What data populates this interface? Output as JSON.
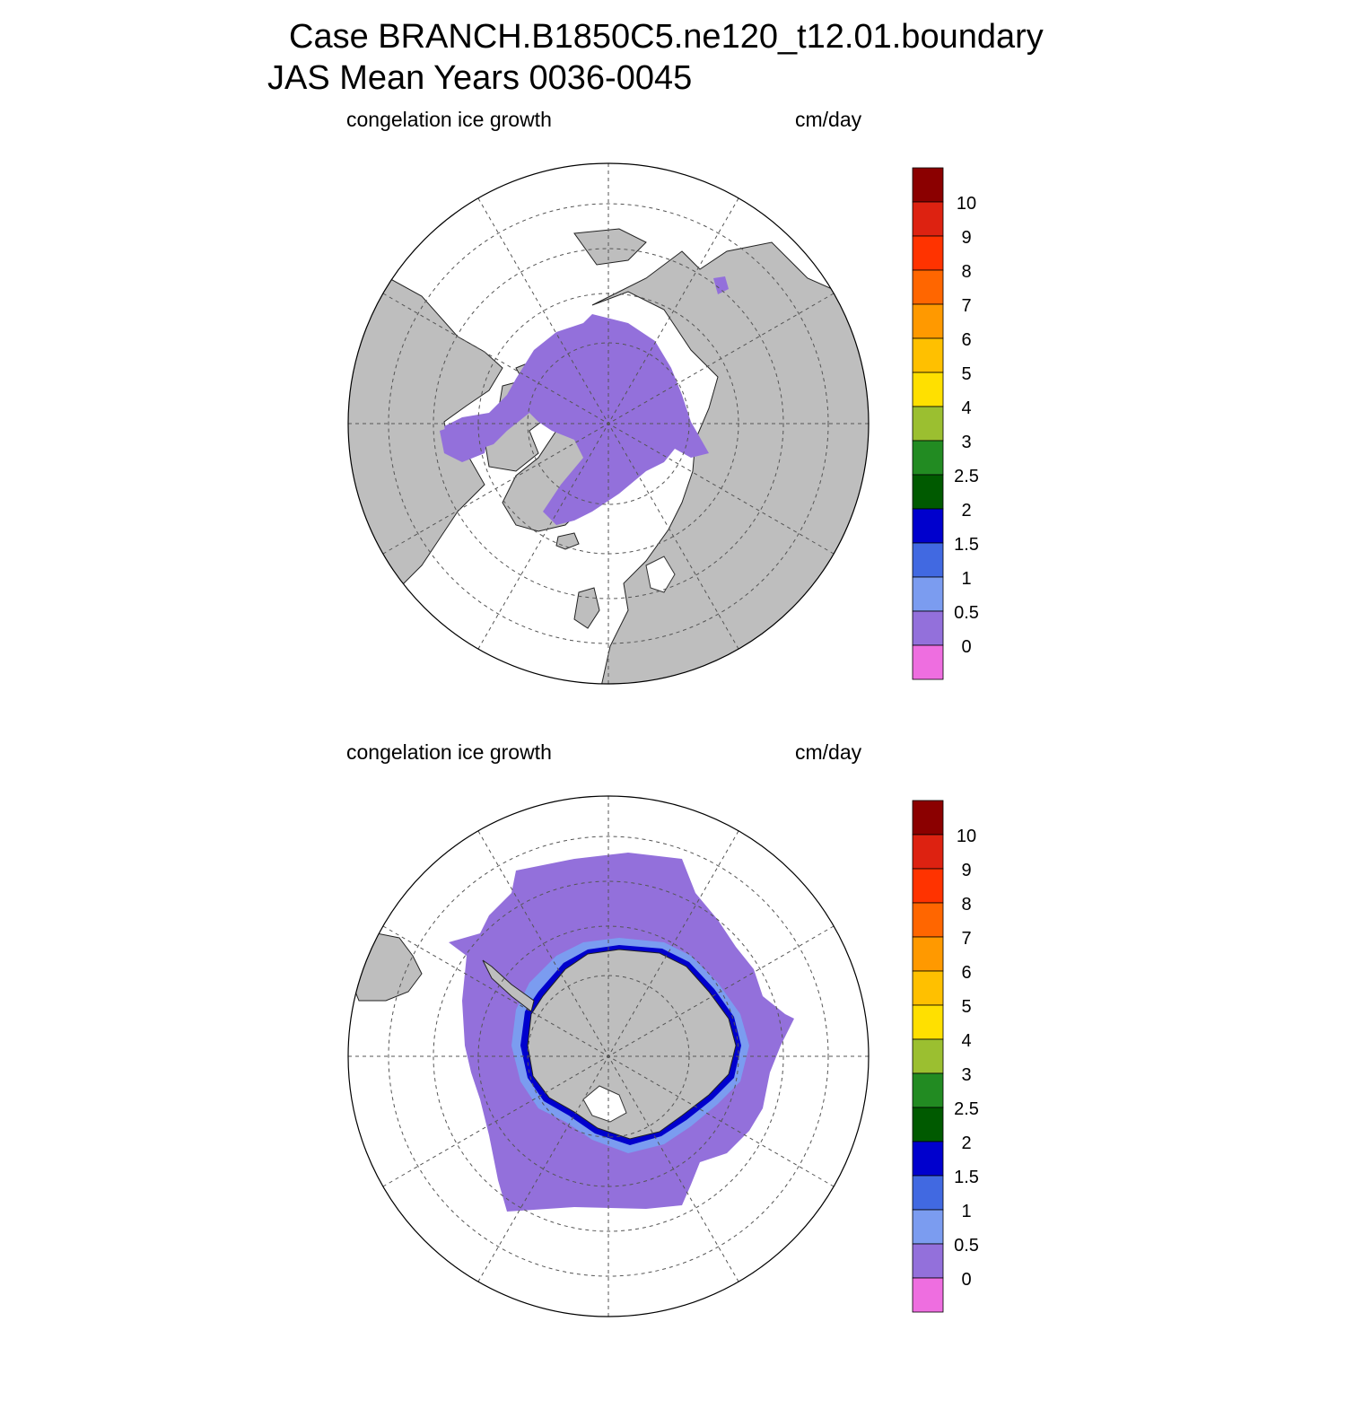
{
  "title": {
    "case": "Case BRANCH.B1850C5.ne120_t12.01.boundary",
    "period": "JAS Mean   Years 0036-0045"
  },
  "colors": {
    "land": "#bebebe",
    "ocean": "#ffffff",
    "ice_min": "#9370db",
    "grid": "#555555"
  },
  "colorbar": {
    "colors": [
      "#ee6ee0",
      "#9370db",
      "#7b9cf0",
      "#4169e1",
      "#0000cd",
      "#005a00",
      "#228b22",
      "#9bbf30",
      "#ffe000",
      "#ffc000",
      "#ff9900",
      "#ff6600",
      "#ff3300",
      "#dd2211",
      "#8b0000"
    ],
    "labels": [
      "0",
      "0.5",
      "1",
      "1.5",
      "2",
      "2.5",
      "3",
      "4",
      "5",
      "6",
      "7",
      "8",
      "9",
      "10"
    ]
  },
  "panels": [
    {
      "name": "north",
      "variable_label": "congelation ice growth",
      "units_label": "cm/day",
      "hemisphere": "Northern Hemisphere",
      "dominant_value_range": "0 - 0.5"
    },
    {
      "name": "south",
      "variable_label": "congelation ice growth",
      "units_label": "cm/day",
      "hemisphere": "Southern Hemisphere",
      "dominant_value_range": "0 - 0.5"
    }
  ]
}
